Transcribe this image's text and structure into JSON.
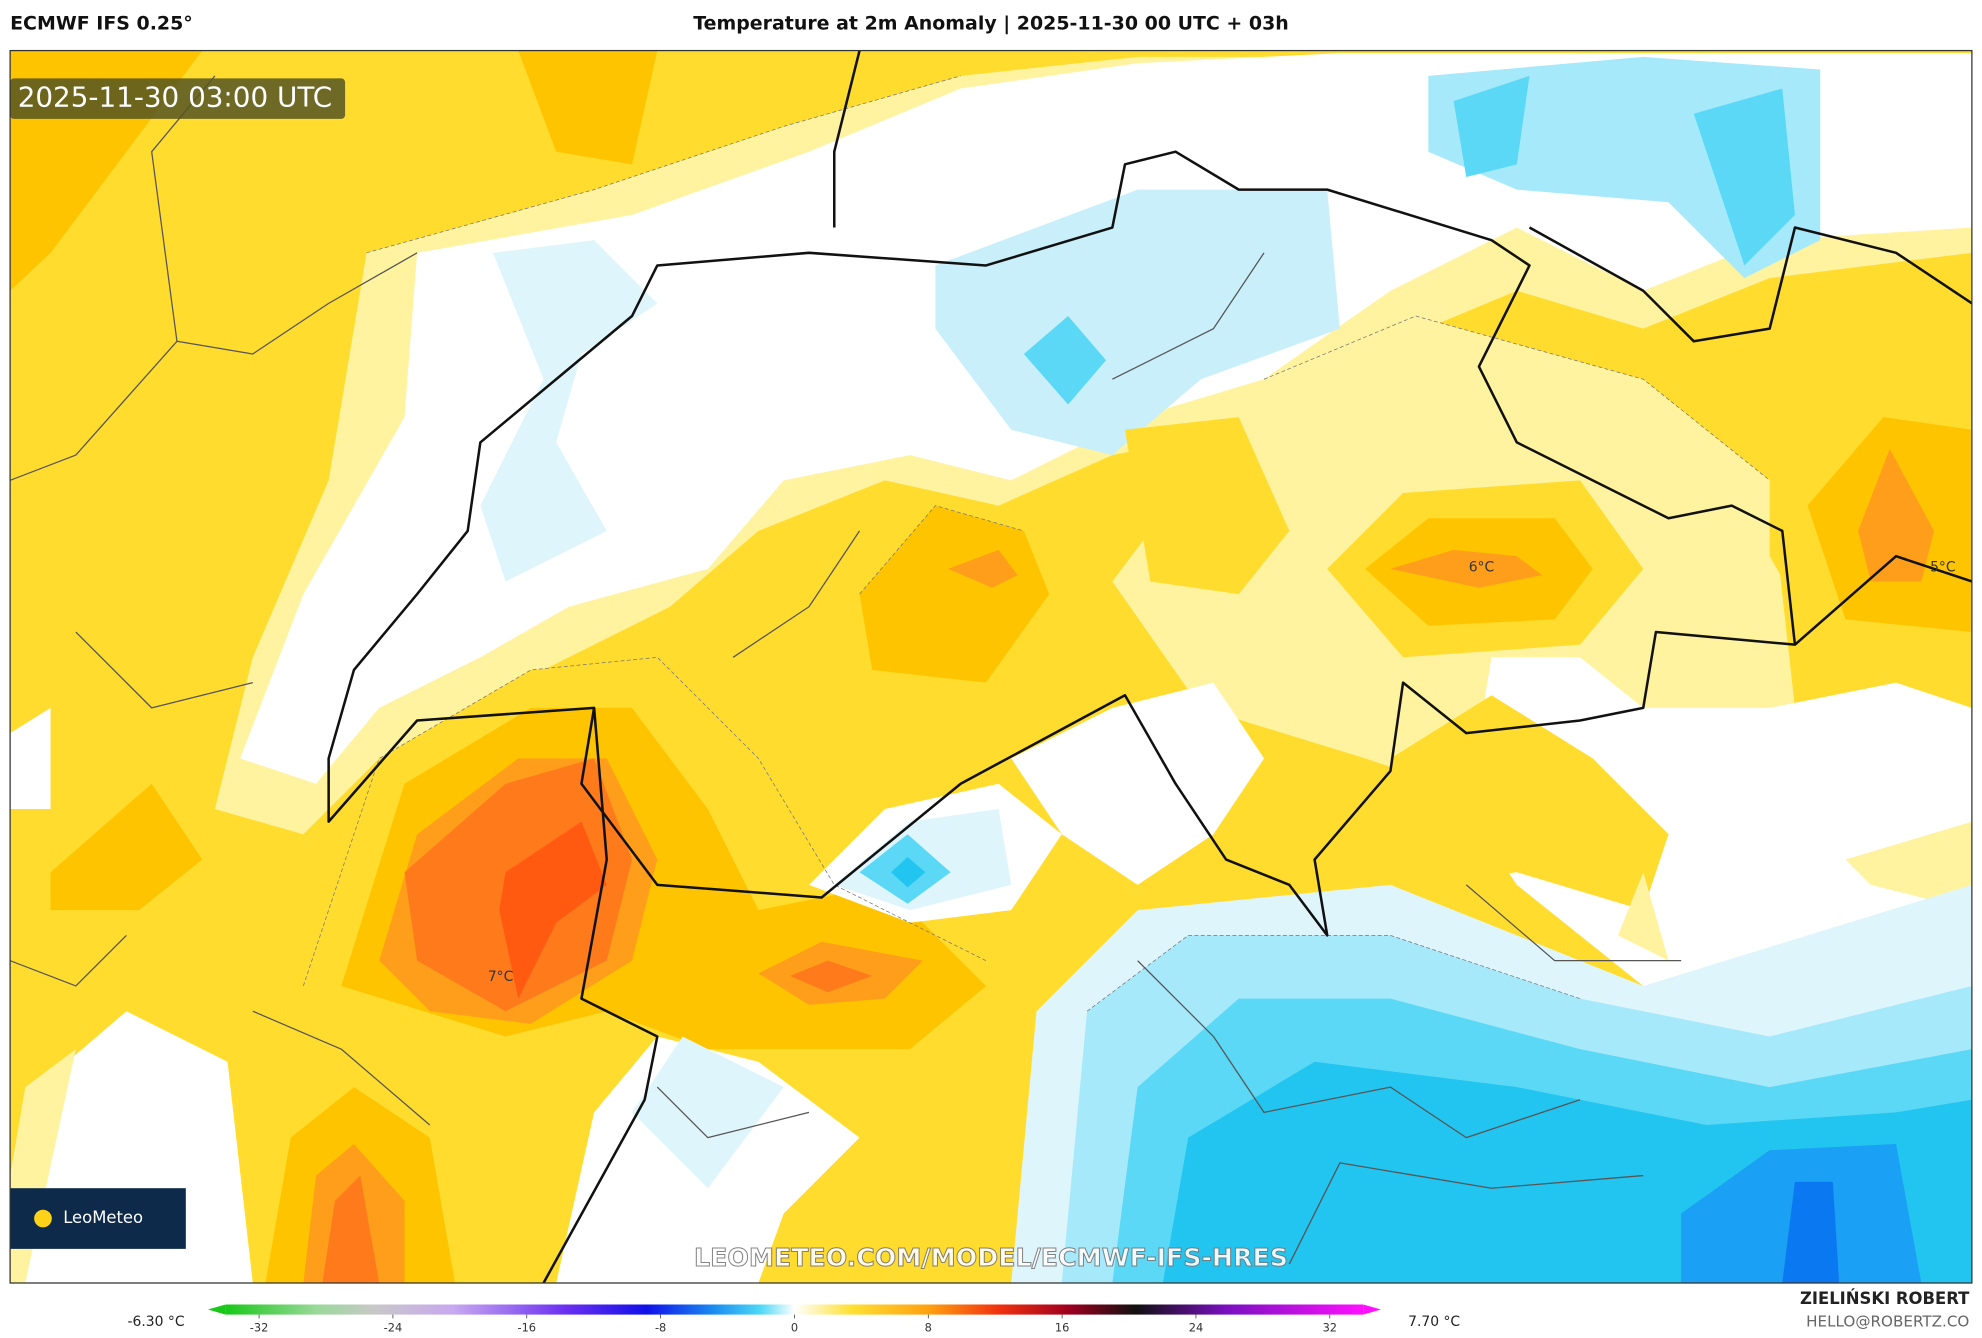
{
  "header": {
    "model": "ECMWF IFS 0.25°",
    "title": "Temperature at 2m Anomaly | 2025-11-30 00 UTC + 03h"
  },
  "map": {
    "timestamp": "2025-11-30 03:00 UTC",
    "labels": [
      "7°C",
      "6°C",
      "5°C"
    ],
    "watermark": "LEOMETEO.COM/MODEL/ECMWF-IFS-HRES",
    "logo": "LeoMeteo"
  },
  "colorbar": {
    "min_label": "-6.30 °C",
    "max_label": "7.70 °C",
    "lim": [
      -34,
      34
    ],
    "ticks": [
      -32,
      -24,
      -16,
      -8,
      0,
      8,
      16,
      24,
      32
    ]
  },
  "footer": {
    "author": "ZIELIŃSKI ROBERT",
    "email": "HELLO@ROBERTZ.CO"
  }
}
